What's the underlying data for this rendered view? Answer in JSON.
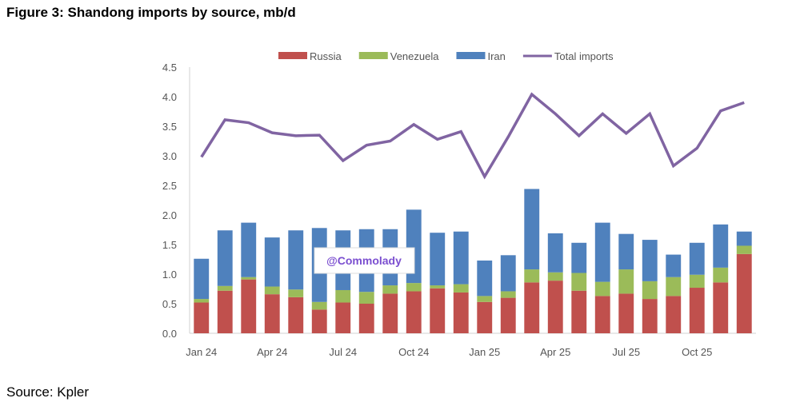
{
  "title": "Figure 3: Shandong imports by source, mb/d",
  "source": "Source: Kpler",
  "watermark": "@Commolady",
  "chart_data": {
    "type": "bar",
    "stacked": true,
    "title": "Figure 3: Shandong imports by source, mb/d",
    "ylim": [
      0,
      4.5
    ],
    "yticks": [
      "0.0",
      "0.5",
      "1.0",
      "1.5",
      "2.0",
      "2.5",
      "3.0",
      "3.5",
      "4.0",
      "4.5"
    ],
    "categories": [
      "Jan 24",
      "Feb 24",
      "Mar 24",
      "Apr 24",
      "May 24",
      "Jun 24",
      "Jul 24",
      "Aug 24",
      "Sep 24",
      "Oct 24",
      "Nov 24",
      "Dec 24",
      "Jan 25",
      "Feb 25",
      "Mar 25",
      "Apr 25",
      "May 25",
      "Jun 25",
      "Jul 25",
      "Aug 25",
      "Sep 25",
      "Oct 25",
      "Nov 25",
      "Dec 25"
    ],
    "xtick_labels": [
      "Jan 24",
      "Apr 24",
      "Jul 24",
      "Oct 24",
      "Jan 25",
      "Apr 25",
      "Jul 25",
      "Oct 25"
    ],
    "legend_position": "top",
    "grid": false,
    "series": [
      {
        "name": "Russia",
        "type": "bar",
        "color": "#c0504d",
        "values": [
          0.52,
          0.72,
          0.91,
          0.66,
          0.61,
          0.4,
          0.52,
          0.5,
          0.67,
          0.71,
          0.76,
          0.69,
          0.53,
          0.6,
          0.86,
          0.89,
          0.72,
          0.63,
          0.67,
          0.58,
          0.63,
          0.77,
          0.86,
          1.34
        ]
      },
      {
        "name": "Venezuela",
        "type": "bar",
        "color": "#9bbb59",
        "values": [
          0.06,
          0.08,
          0.04,
          0.13,
          0.13,
          0.13,
          0.21,
          0.2,
          0.14,
          0.14,
          0.05,
          0.14,
          0.1,
          0.11,
          0.22,
          0.14,
          0.3,
          0.24,
          0.41,
          0.3,
          0.32,
          0.22,
          0.25,
          0.14
        ]
      },
      {
        "name": "Iran",
        "type": "bar",
        "color": "#4f81bd",
        "values": [
          0.68,
          0.94,
          0.92,
          0.83,
          1.0,
          1.25,
          1.01,
          1.06,
          0.95,
          1.24,
          0.89,
          0.89,
          0.6,
          0.61,
          1.36,
          0.66,
          0.51,
          1.0,
          0.6,
          0.7,
          0.38,
          0.54,
          0.73,
          0.24
        ]
      },
      {
        "name": "Total imports",
        "type": "line",
        "color": "#8064a2",
        "values": [
          2.98,
          3.61,
          3.56,
          3.39,
          3.34,
          3.35,
          2.92,
          3.18,
          3.25,
          3.53,
          3.28,
          3.41,
          2.65,
          3.32,
          4.04,
          3.71,
          3.34,
          3.71,
          3.38,
          3.71,
          2.83,
          3.13,
          3.76,
          3.9
        ]
      }
    ]
  }
}
